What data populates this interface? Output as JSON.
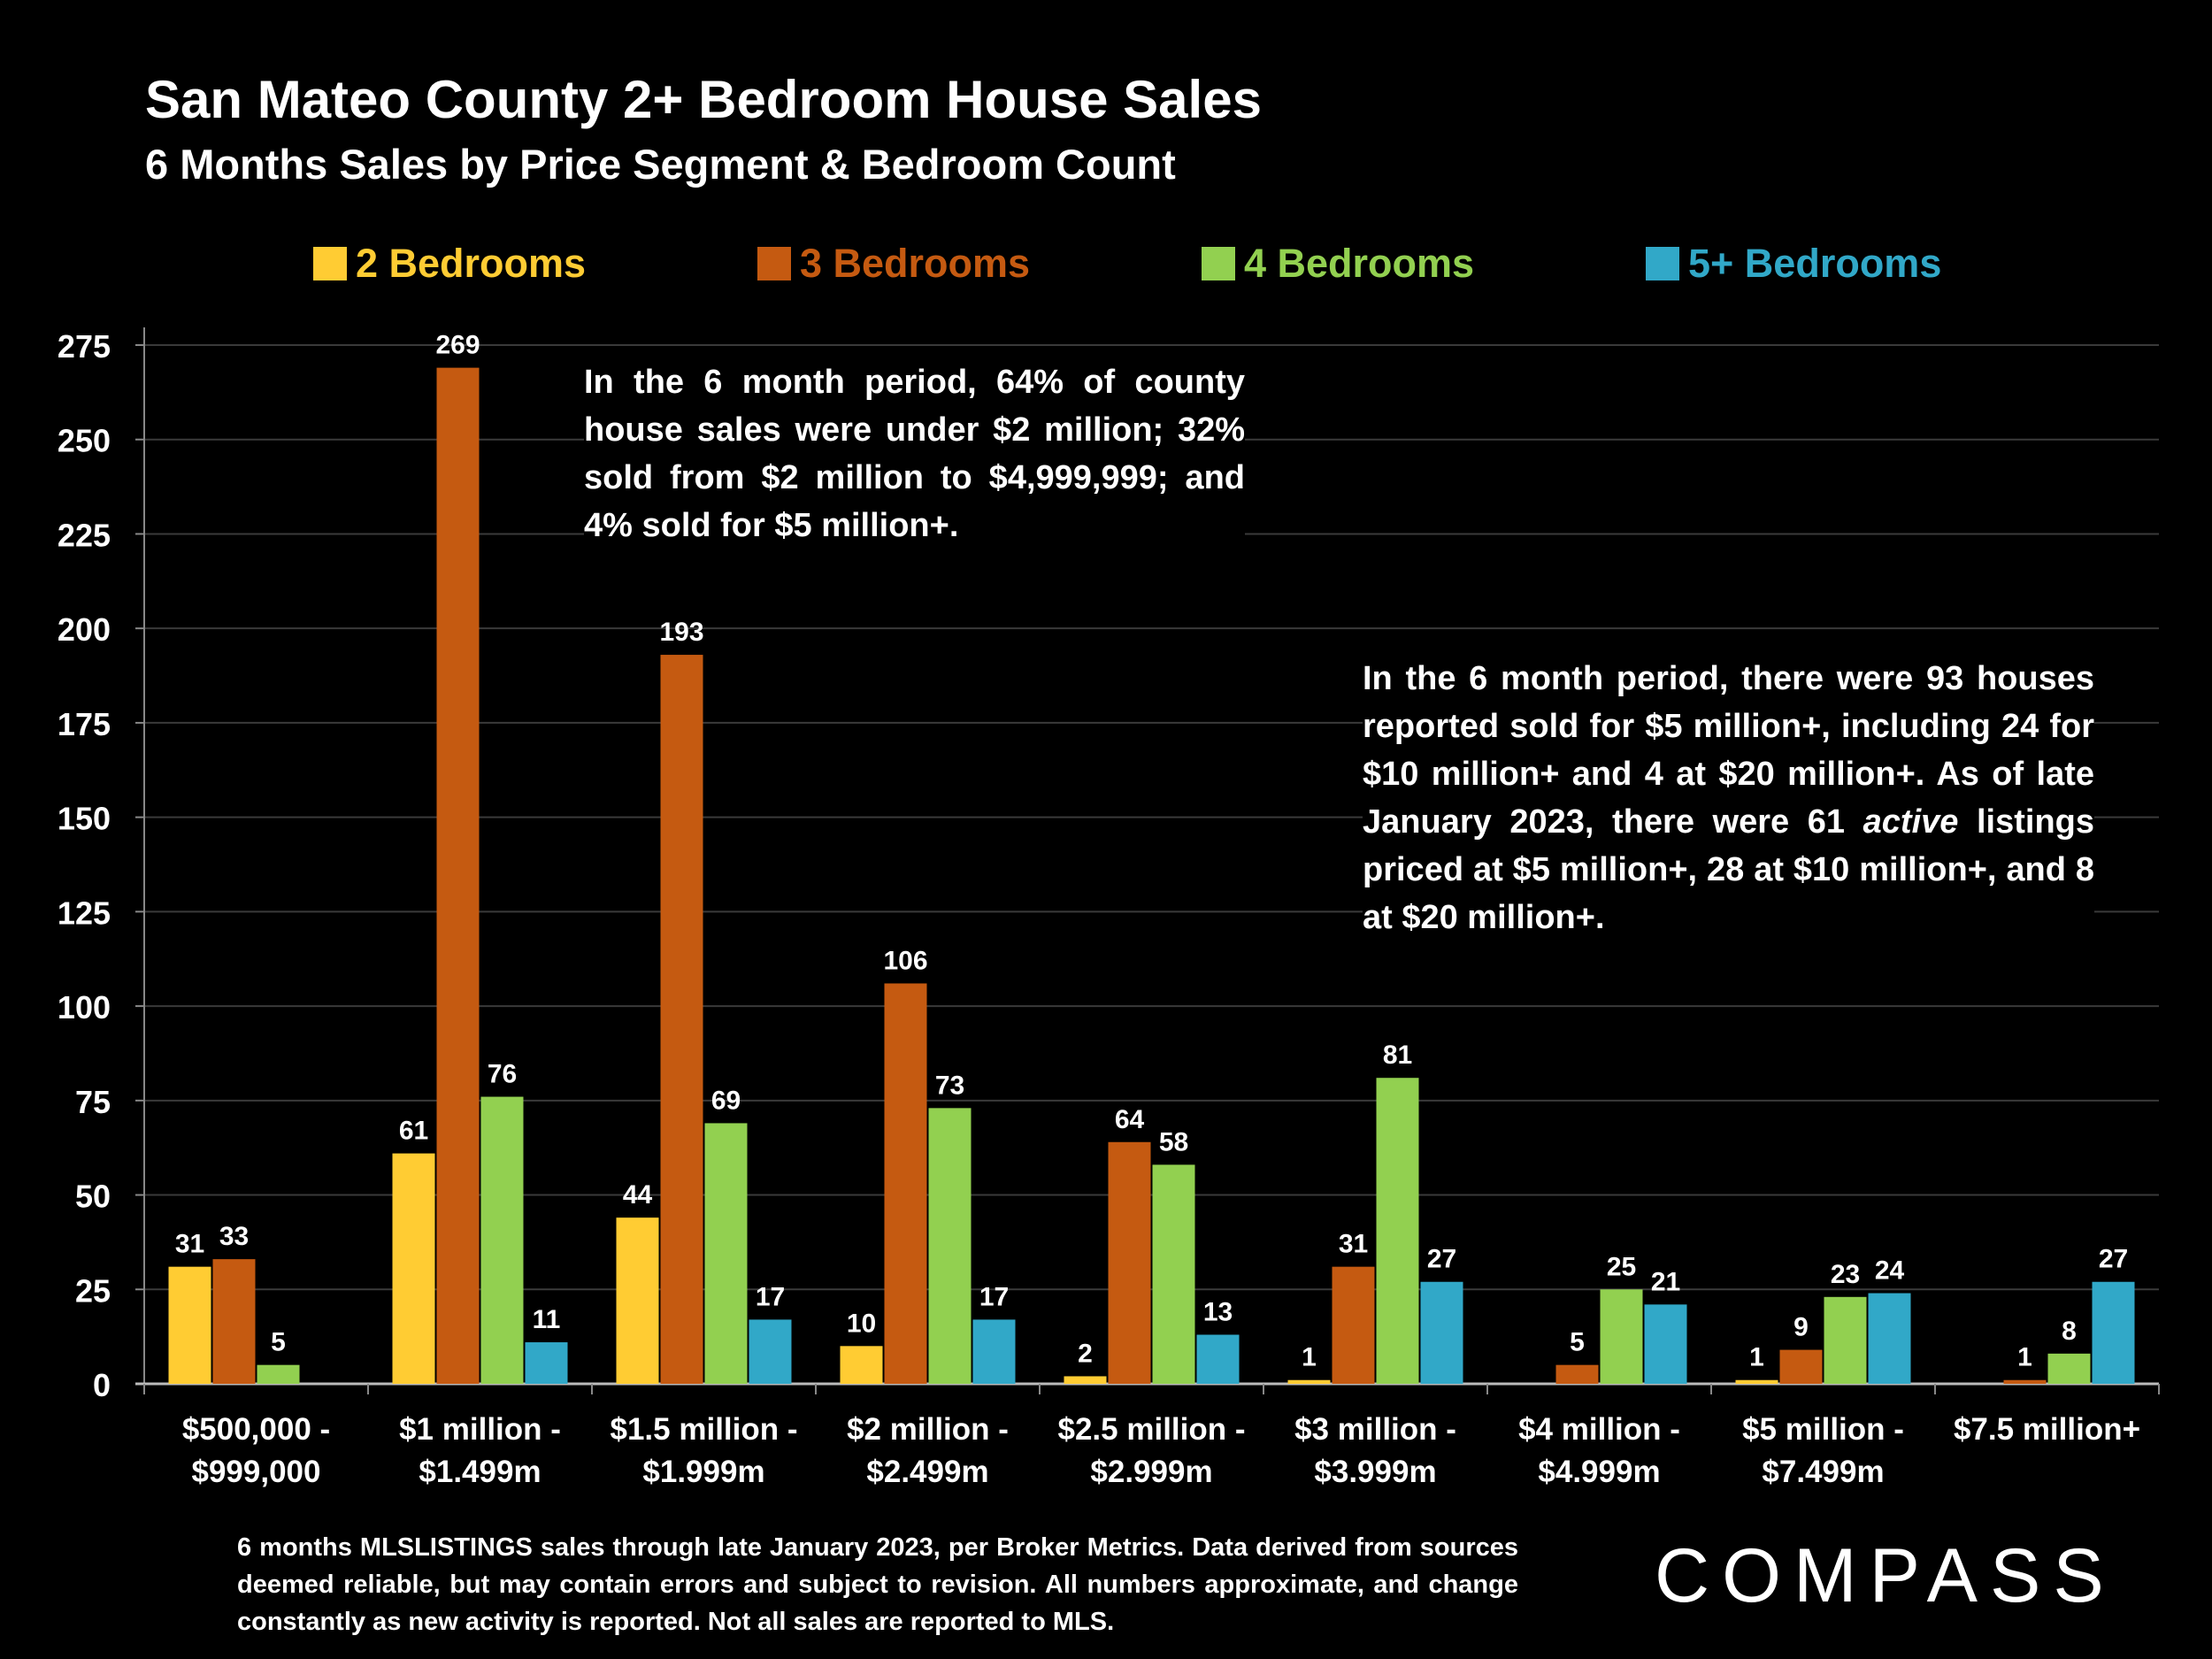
{
  "header": {
    "title": "San Mateo County 2+ Bedroom House Sales",
    "subtitle": "6 Months Sales by Price Segment & Bedroom Count"
  },
  "legend": [
    {
      "label": "2 Bedrooms",
      "color": "#FFCC33"
    },
    {
      "label": "3 Bedrooms",
      "color": "#C55A11"
    },
    {
      "label": "4 Bedrooms",
      "color": "#92D050"
    },
    {
      "label": "5+ Bedrooms",
      "color": "#31A8C8"
    }
  ],
  "annotations": {
    "left": "In the 6 month period, 64% of county house sales were under $2 million; 32% sold from $2 million to $4,999,999; and 4% sold for $5 million+.",
    "right_part1": "In the 6 month period, there were 93 houses reported sold for $5 million+, including 24 for $10 million+ and 4 at $20 million+. As of late January 2023, there were 61 ",
    "right_em": "active",
    "right_part2": " listings priced at $5 million+, 28 at $10 million+, and 8 at $20 million+."
  },
  "footnote": "6 months MLSLISTINGS sales through late January 2023, per Broker Metrics. Data derived from sources deemed reliable, but may contain errors and subject to revision. All numbers approximate, and change constantly as new activity is reported. Not all sales are reported to MLS.",
  "logo": "COMPASS",
  "chart_data": {
    "type": "bar",
    "title": "San Mateo County 2+ Bedroom House Sales",
    "subtitle": "6 Months Sales by Price Segment & Bedroom Count",
    "categories": [
      [
        "$500,000 -",
        "$999,000"
      ],
      [
        "$1 million -",
        "$1.499m"
      ],
      [
        "$1.5 million -",
        "$1.999m"
      ],
      [
        "$2 million -",
        "$2.499m"
      ],
      [
        "$2.5 million -",
        "$2.999m"
      ],
      [
        "$3 million -",
        "$3.999m"
      ],
      [
        "$4 million -",
        "$4.999m"
      ],
      [
        "$5 million -",
        "$7.499m"
      ],
      [
        "$7.5 million+"
      ]
    ],
    "series": [
      {
        "name": "2 Bedrooms",
        "color": "#FFCC33",
        "values": [
          31,
          61,
          44,
          10,
          2,
          1,
          null,
          1,
          null
        ]
      },
      {
        "name": "3 Bedrooms",
        "color": "#C55A11",
        "values": [
          33,
          269,
          193,
          106,
          64,
          31,
          5,
          9,
          1
        ]
      },
      {
        "name": "4 Bedrooms",
        "color": "#92D050",
        "values": [
          5,
          76,
          69,
          73,
          58,
          81,
          25,
          23,
          8
        ]
      },
      {
        "name": "5+ Bedrooms",
        "color": "#31A8C8",
        "values": [
          null,
          11,
          17,
          17,
          13,
          27,
          21,
          24,
          27
        ]
      }
    ],
    "ylim": [
      0,
      275
    ],
    "yticks": [
      0,
      25,
      50,
      75,
      100,
      125,
      150,
      175,
      200,
      225,
      250,
      275
    ],
    "grid": true,
    "legend_position": "top"
  }
}
